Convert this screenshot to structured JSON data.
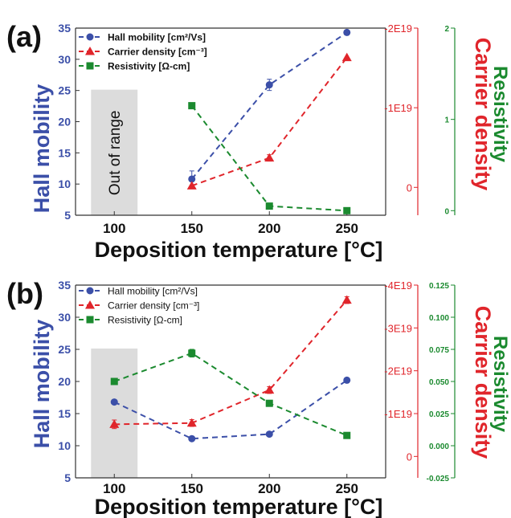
{
  "chart_data": [
    {
      "panel_label": "(a)",
      "type": "line",
      "xlabel": "Deposition temperature [°C]",
      "x": [
        150,
        200,
        250
      ],
      "xlim": [
        75,
        275
      ],
      "xticks": [
        100,
        150,
        200,
        250
      ],
      "shaded_region": {
        "x": [
          85,
          115
        ],
        "label": "Out of range"
      },
      "axes": {
        "left": {
          "label": "Hall mobility",
          "color": "#3b4fa8",
          "lim": [
            5,
            35
          ],
          "ticks": [
            5,
            10,
            15,
            20,
            25,
            30,
            35
          ],
          "tick_labels": [
            "5",
            "10",
            "15",
            "20",
            "25",
            "30",
            "35"
          ]
        },
        "mid": {
          "label": "Carrier density",
          "color": "#e0252b",
          "lim": [
            0.35,
            -2.0
          ],
          "ticks": [
            0,
            -1,
            -2
          ],
          "tick_labels": [
            "0",
            "-1E19",
            "-2E19"
          ]
        },
        "right": {
          "label": "Resistivity",
          "color": "#1b8a2f",
          "lim": [
            -0.05,
            2.0
          ],
          "ticks": [
            0,
            1,
            2
          ],
          "tick_labels": [
            "0",
            "1",
            "2"
          ]
        }
      },
      "series": [
        {
          "name": "Hall mobility [cm²/Vs]",
          "axis": "left",
          "color": "#3b4fa8",
          "marker": "circle",
          "x": [
            150,
            200,
            250
          ],
          "y": [
            10.8,
            25.9,
            34.3
          ],
          "err": [
            1.3,
            0.9,
            0
          ]
        },
        {
          "name": "Carrier density [cm⁻³]",
          "axis": "mid",
          "color": "#e0252b",
          "marker": "triangle",
          "x": [
            150,
            200,
            250
          ],
          "y": [
            -0.02,
            -0.37,
            -1.63
          ],
          "err": [
            0,
            0.04,
            0
          ]
        },
        {
          "name": "Resistivity [Ω-cm]",
          "axis": "right",
          "color": "#1b8a2f",
          "marker": "square",
          "x": [
            150,
            200,
            250
          ],
          "y": [
            1.15,
            0.05,
            0.0
          ],
          "err": [
            0,
            0,
            0
          ]
        }
      ]
    },
    {
      "panel_label": "(b)",
      "type": "line",
      "xlabel": "Deposition temperature [°C]",
      "x": [
        100,
        150,
        200,
        250
      ],
      "xlim": [
        75,
        275
      ],
      "xticks": [
        100,
        150,
        200,
        250
      ],
      "shaded_region": {
        "x": [
          85,
          115
        ],
        "label": ""
      },
      "axes": {
        "left": {
          "label": "Hall mobility",
          "color": "#3b4fa8",
          "lim": [
            5,
            35
          ],
          "ticks": [
            5,
            10,
            15,
            20,
            25,
            30,
            35
          ],
          "tick_labels": [
            "5",
            "10",
            "15",
            "20",
            "25",
            "30",
            "35"
          ]
        },
        "mid": {
          "label": "Carrier density",
          "color": "#e0252b",
          "lim": [
            0.5,
            -4.0
          ],
          "ticks": [
            0,
            -1,
            -2,
            -3,
            -4
          ],
          "tick_labels": [
            "0",
            "-1E19",
            "-2E19",
            "-3E19",
            "-4E19"
          ]
        },
        "right": {
          "label": "Resistivity",
          "color": "#1b8a2f",
          "lim": [
            -0.025,
            0.125
          ],
          "ticks": [
            -0.025,
            0,
            0.025,
            0.05,
            0.075,
            0.1,
            0.125
          ],
          "tick_labels": [
            "-0.025",
            "0.000",
            "0.025",
            "0.050",
            "0.075",
            "0.100",
            "0.125"
          ]
        }
      },
      "series": [
        {
          "name": "Hall mobility [cm²/Vs]",
          "axis": "left",
          "color": "#3b4fa8",
          "marker": "circle",
          "x": [
            100,
            150,
            200,
            250
          ],
          "y": [
            16.8,
            11.1,
            11.8,
            20.2
          ],
          "err": [
            0.3,
            0.3,
            0.3,
            0.2
          ]
        },
        {
          "name": "Carrier density [cm⁻³]",
          "axis": "mid",
          "color": "#e0252b",
          "marker": "triangle",
          "x": [
            100,
            150,
            200,
            250
          ],
          "y": [
            -0.75,
            -0.78,
            -1.55,
            -3.65
          ],
          "err": [
            0.1,
            0.08,
            0.08,
            0.08
          ]
        },
        {
          "name": "Resistivity [Ω-cm]",
          "axis": "right",
          "color": "#1b8a2f",
          "marker": "square",
          "x": [
            100,
            150,
            200,
            250
          ],
          "y": [
            0.05,
            0.072,
            0.033,
            0.008
          ],
          "err": [
            0.002,
            0.003,
            0.002,
            0.001
          ]
        }
      ]
    }
  ]
}
